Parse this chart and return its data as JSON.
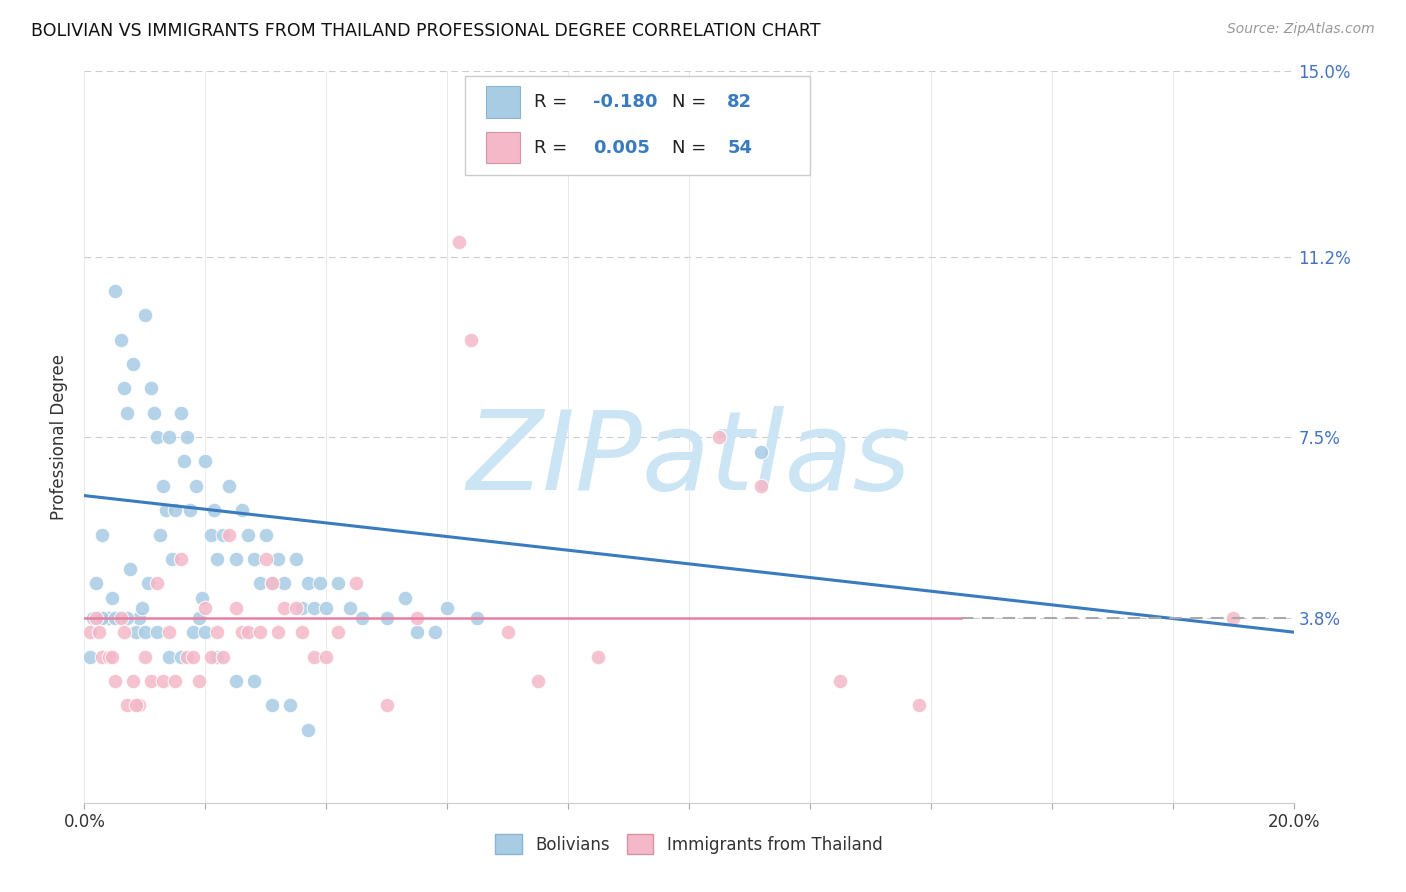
{
  "title": "BOLIVIAN VS IMMIGRANTS FROM THAILAND PROFESSIONAL DEGREE CORRELATION CHART",
  "source": "Source: ZipAtlas.com",
  "ylabel": "Professional Degree",
  "xmin": 0.0,
  "xmax": 20.0,
  "ymin": 0.0,
  "ymax": 15.0,
  "yticks": [
    0.0,
    3.8,
    7.5,
    11.2,
    15.0
  ],
  "ytick_labels": [
    "",
    "3.8%",
    "7.5%",
    "11.2%",
    "15.0%"
  ],
  "blue_R": "-0.180",
  "blue_N": "82",
  "pink_R": "0.005",
  "pink_N": "54",
  "blue_color": "#a8cce4",
  "pink_color": "#f4b8c8",
  "blue_line_color": "#3a7bbf",
  "pink_line_color": "#e87fa0",
  "blue_scatter_x": [
    0.15,
    0.2,
    0.25,
    0.3,
    0.35,
    0.4,
    0.45,
    0.5,
    0.55,
    0.6,
    0.65,
    0.7,
    0.75,
    0.8,
    0.85,
    0.9,
    0.95,
    1.0,
    1.05,
    1.1,
    1.15,
    1.2,
    1.25,
    1.3,
    1.35,
    1.4,
    1.45,
    1.5,
    1.6,
    1.65,
    1.7,
    1.75,
    1.85,
    1.9,
    1.95,
    2.0,
    2.1,
    2.15,
    2.2,
    2.3,
    2.4,
    2.5,
    2.6,
    2.7,
    2.8,
    2.9,
    3.0,
    3.1,
    3.2,
    3.3,
    3.5,
    3.6,
    3.7,
    3.8,
    3.9,
    4.0,
    4.2,
    4.4,
    4.6,
    5.0,
    5.3,
    5.5,
    5.8,
    6.0,
    6.5,
    0.1,
    0.3,
    0.5,
    0.7,
    1.0,
    1.2,
    1.4,
    1.6,
    1.8,
    2.0,
    2.2,
    2.5,
    2.8,
    3.1,
    3.4,
    3.7,
    11.2
  ],
  "blue_scatter_y": [
    3.8,
    4.5,
    3.8,
    5.5,
    3.8,
    3.8,
    4.2,
    10.5,
    3.8,
    9.5,
    8.5,
    8.0,
    4.8,
    9.0,
    3.5,
    3.8,
    4.0,
    10.0,
    4.5,
    8.5,
    8.0,
    7.5,
    5.5,
    6.5,
    6.0,
    7.5,
    5.0,
    6.0,
    8.0,
    7.0,
    7.5,
    6.0,
    6.5,
    3.8,
    4.2,
    7.0,
    5.5,
    6.0,
    5.0,
    5.5,
    6.5,
    5.0,
    6.0,
    5.5,
    5.0,
    4.5,
    5.5,
    4.5,
    5.0,
    4.5,
    5.0,
    4.0,
    4.5,
    4.0,
    4.5,
    4.0,
    4.5,
    4.0,
    3.8,
    3.8,
    4.2,
    3.5,
    3.5,
    4.0,
    3.8,
    3.0,
    3.8,
    3.8,
    3.8,
    3.5,
    3.5,
    3.0,
    3.0,
    3.5,
    3.5,
    3.0,
    2.5,
    2.5,
    2.0,
    2.0,
    1.5,
    7.2
  ],
  "pink_scatter_x": [
    0.1,
    0.2,
    0.3,
    0.4,
    0.5,
    0.6,
    0.7,
    0.8,
    0.9,
    1.0,
    1.1,
    1.2,
    1.3,
    1.4,
    1.5,
    1.6,
    1.7,
    1.8,
    1.9,
    2.0,
    2.1,
    2.2,
    2.3,
    2.4,
    2.5,
    2.6,
    2.7,
    2.9,
    3.0,
    3.1,
    3.2,
    3.3,
    3.5,
    3.6,
    3.8,
    4.0,
    4.2,
    4.5,
    5.5,
    6.2,
    6.4,
    7.0,
    7.5,
    8.5,
    10.5,
    11.2,
    12.5,
    13.8,
    0.25,
    0.45,
    0.65,
    0.85,
    19.0,
    5.0
  ],
  "pink_scatter_y": [
    3.5,
    3.8,
    3.0,
    3.0,
    2.5,
    3.8,
    2.0,
    2.5,
    2.0,
    3.0,
    2.5,
    4.5,
    2.5,
    3.5,
    2.5,
    5.0,
    3.0,
    3.0,
    2.5,
    4.0,
    3.0,
    3.5,
    3.0,
    5.5,
    4.0,
    3.5,
    3.5,
    3.5,
    5.0,
    4.5,
    3.5,
    4.0,
    4.0,
    3.5,
    3.0,
    3.0,
    3.5,
    4.5,
    3.8,
    11.5,
    9.5,
    3.5,
    2.5,
    3.0,
    7.5,
    6.5,
    2.5,
    2.0,
    3.5,
    3.0,
    3.5,
    2.0,
    3.8,
    2.0
  ],
  "blue_line_x0": 0.0,
  "blue_line_y0": 6.3,
  "blue_line_x1": 20.0,
  "blue_line_y1": 3.5,
  "pink_line_y": 3.8,
  "pink_cross_x": 14.5,
  "watermark": "ZIPatlas",
  "watermark_color": "#cce5f5",
  "background_color": "#ffffff",
  "grid_color": "#e0e0e0",
  "grid_dash_color": "#cccccc"
}
